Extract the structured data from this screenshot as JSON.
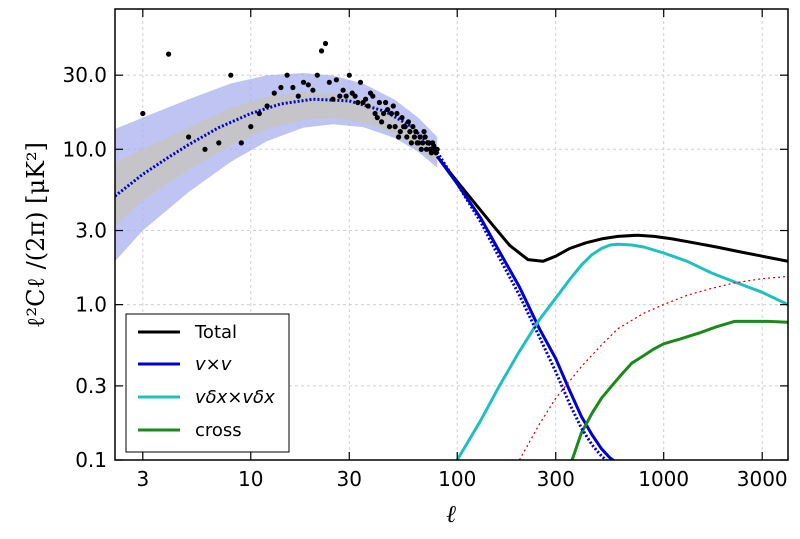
{
  "chart_data": {
    "type": "line",
    "xlabel": "ℓ",
    "ylabel": "ℓ²Cℓ /(2π) [μK²]",
    "x_scale": "log",
    "y_scale": "log",
    "xlim": [
      2.2,
      4000
    ],
    "ylim": [
      0.1,
      80
    ],
    "x_ticks": [
      3,
      10,
      30,
      100,
      300,
      1000,
      3000
    ],
    "x_tick_labels": [
      "3",
      "10",
      "30",
      "100",
      "300",
      "1000",
      "3000"
    ],
    "y_ticks": [
      0.1,
      0.3,
      1.0,
      3.0,
      10.0,
      30.0
    ],
    "y_tick_labels": [
      "0.1",
      "0.3",
      "1.0",
      "3.0",
      "10.0",
      "30.0"
    ],
    "grid": true,
    "legend_position": "lower-left",
    "series": [
      {
        "name": "Total",
        "color": "#000000",
        "style": "solid",
        "x": [
          80,
          100,
          120,
          150,
          180,
          220,
          260,
          300,
          350,
          420,
          500,
          600,
          750,
          900,
          1100,
          1400,
          1800,
          2300,
          3000,
          4000
        ],
        "y": [
          9.0,
          6.2,
          4.6,
          3.2,
          2.4,
          1.95,
          1.9,
          2.05,
          2.3,
          2.5,
          2.65,
          2.75,
          2.8,
          2.75,
          2.65,
          2.5,
          2.35,
          2.2,
          2.05,
          1.9
        ]
      },
      {
        "name": "v×v",
        "color": "#0000cc",
        "style": "solid",
        "x": [
          80,
          100,
          130,
          160,
          200,
          250,
          300,
          350,
          400,
          450,
          500,
          550,
          600
        ],
        "y": [
          9.0,
          6.0,
          3.6,
          2.2,
          1.3,
          0.7,
          0.45,
          0.28,
          0.19,
          0.145,
          0.118,
          0.103,
          0.095
        ]
      },
      {
        "name": "vδx×vδx",
        "color": "#20c0c0",
        "style": "solid",
        "x": [
          100,
          130,
          160,
          200,
          250,
          300,
          350,
          400,
          450,
          500,
          550,
          600,
          700,
          800,
          1000,
          1300,
          1700,
          2200,
          3000,
          4000
        ],
        "y": [
          0.1,
          0.18,
          0.3,
          0.5,
          0.8,
          1.1,
          1.45,
          1.8,
          2.1,
          2.3,
          2.42,
          2.45,
          2.42,
          2.35,
          2.15,
          1.9,
          1.6,
          1.4,
          1.2,
          1.0
        ]
      },
      {
        "name": "cross",
        "color": "#1a8a1a",
        "style": "solid",
        "x": [
          360,
          400,
          450,
          500,
          560,
          630,
          700,
          800,
          900,
          1000,
          1200,
          1500,
          1800,
          2200,
          2700,
          3200,
          4000
        ],
        "y": [
          0.1,
          0.15,
          0.2,
          0.25,
          0.3,
          0.36,
          0.42,
          0.47,
          0.52,
          0.56,
          0.6,
          0.66,
          0.72,
          0.78,
          0.78,
          0.78,
          0.77
        ]
      },
      {
        "name": "",
        "color": "#0000cc",
        "style": "dotted",
        "x": [
          2.2,
          3,
          4,
          5,
          7,
          10,
          14,
          20,
          30,
          45,
          60,
          80,
          100,
          130,
          160,
          200,
          250,
          300,
          350,
          400,
          450,
          500,
          550
        ],
        "y": [
          5.0,
          6.9,
          8.9,
          10.7,
          13.8,
          17.0,
          19.6,
          21.0,
          20.5,
          17.5,
          14.0,
          9.6,
          6.0,
          3.4,
          2.0,
          1.15,
          0.62,
          0.37,
          0.23,
          0.16,
          0.125,
          0.106,
          0.095
        ]
      },
      {
        "name": "",
        "color": "#cc0000",
        "style": "dotted",
        "x": [
          200,
          250,
          300,
          400,
          500,
          600,
          800,
          1000,
          1300,
          1700,
          2200,
          3000,
          4000
        ],
        "y": [
          0.1,
          0.17,
          0.25,
          0.4,
          0.55,
          0.7,
          0.88,
          1.0,
          1.15,
          1.27,
          1.38,
          1.47,
          1.52
        ]
      }
    ],
    "bands": [
      {
        "color": "#aab0ee",
        "opacity": 0.75,
        "x": [
          2.2,
          3,
          5,
          8,
          12,
          18,
          25,
          35,
          50,
          65,
          80
        ],
        "lower": [
          1.9,
          3.0,
          5.3,
          8.3,
          11.3,
          13.8,
          14.5,
          13.9,
          11.8,
          9.6,
          7.6
        ],
        "upper": [
          13.5,
          16.0,
          21.0,
          26.5,
          30.0,
          31.0,
          29.8,
          26.5,
          20.8,
          15.9,
          12.0
        ]
      },
      {
        "color": "#c4c4c4",
        "opacity": 0.9,
        "x": [
          2.2,
          3,
          5,
          8,
          12,
          18,
          25,
          35,
          50,
          65,
          80
        ],
        "lower": [
          3.2,
          4.7,
          7.4,
          10.6,
          13.5,
          15.5,
          15.9,
          14.9,
          12.6,
          10.0,
          8.1
        ],
        "upper": [
          8.2,
          10.0,
          13.8,
          18.5,
          21.8,
          23.4,
          22.8,
          20.8,
          17.0,
          13.2,
          10.3
        ]
      }
    ],
    "points": {
      "color": "#000000",
      "x": [
        3,
        4,
        5,
        6,
        7,
        8,
        9,
        10,
        11,
        12,
        13,
        14,
        15,
        16,
        17,
        18,
        19,
        20,
        21,
        22,
        23,
        24,
        25,
        26,
        27,
        28,
        29,
        30,
        31,
        32,
        33,
        34,
        35,
        36,
        37,
        38,
        39,
        40,
        41,
        42,
        43,
        44,
        45,
        46,
        47,
        48,
        49,
        50,
        51,
        52,
        53,
        54,
        55,
        56,
        57,
        58,
        59,
        60,
        61,
        62,
        63,
        64,
        65,
        66,
        67,
        68,
        69,
        70,
        71,
        72,
        73,
        74,
        75,
        76,
        77,
        78,
        79,
        80
      ],
      "y": [
        17,
        41,
        12,
        10,
        11,
        30,
        11,
        14,
        17,
        19,
        23,
        25,
        30,
        25,
        22,
        27,
        26,
        24,
        30,
        43,
        48,
        27,
        21,
        28,
        22,
        24,
        22,
        30,
        23,
        22,
        20,
        27,
        20,
        21,
        19,
        23,
        22,
        17,
        16,
        20,
        15,
        17,
        20,
        18,
        14,
        17,
        19,
        14,
        17,
        12,
        13,
        16,
        14,
        14,
        12,
        15,
        13,
        11,
        14,
        12,
        13,
        11,
        11,
        12,
        10,
        11,
        13,
        12,
        10,
        11,
        11,
        10,
        9.5,
        11,
        10.5,
        10,
        9.5,
        10
      ]
    }
  },
  "legend": {
    "items": [
      {
        "label_main": "Total",
        "color": "#000000"
      },
      {
        "label_main": "v×v",
        "color": "#0000cc"
      },
      {
        "label_main": "vδx×vδx",
        "color": "#20c0c0"
      },
      {
        "label_main": "cross",
        "color": "#1a8a1a"
      }
    ]
  }
}
